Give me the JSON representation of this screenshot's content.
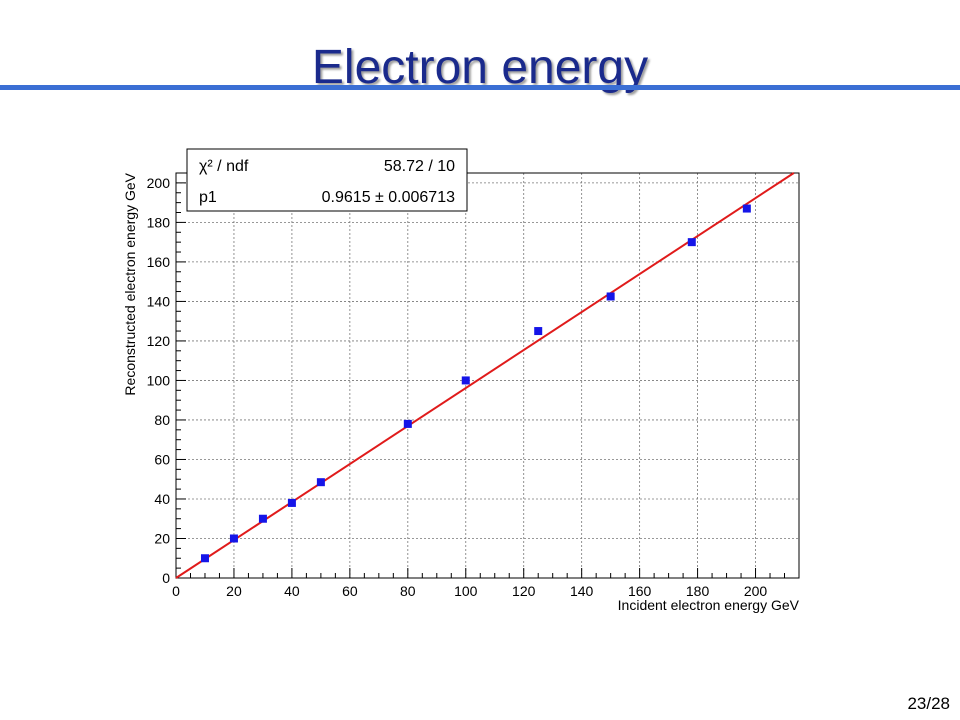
{
  "slide": {
    "title": "Electron energy",
    "page_number": "23/28"
  },
  "colors": {
    "title": "#1a2a8c",
    "title_rule": "#3b6fd4",
    "fit_line": "#e01b1b",
    "markers": "#1515e8"
  },
  "chart_data": {
    "type": "scatter",
    "xlabel": "Incident electron energy GeV",
    "ylabel": "Reconstructed electron energy GeV",
    "xlim": [
      0,
      215
    ],
    "ylim": [
      0,
      205
    ],
    "grid": true,
    "x_ticks": [
      0,
      20,
      40,
      60,
      80,
      100,
      120,
      140,
      160,
      180,
      200
    ],
    "y_ticks": [
      0,
      20,
      40,
      60,
      80,
      100,
      120,
      140,
      160,
      180,
      200
    ],
    "series": [
      {
        "marker": "square",
        "x": [
          10,
          20,
          30,
          40,
          50,
          80,
          100,
          125,
          150,
          178,
          197
        ],
        "y": [
          10,
          20,
          30,
          38,
          48.5,
          78,
          100,
          125,
          142.5,
          170,
          187
        ]
      }
    ],
    "fit": {
      "function": "p1 * x",
      "p1": 0.9615
    },
    "stats_box": {
      "rows": [
        {
          "label": "χ² / ndf",
          "value": "58.72 / 10"
        },
        {
          "label": "p1",
          "value": "0.9615 ± 0.006713"
        }
      ]
    }
  }
}
